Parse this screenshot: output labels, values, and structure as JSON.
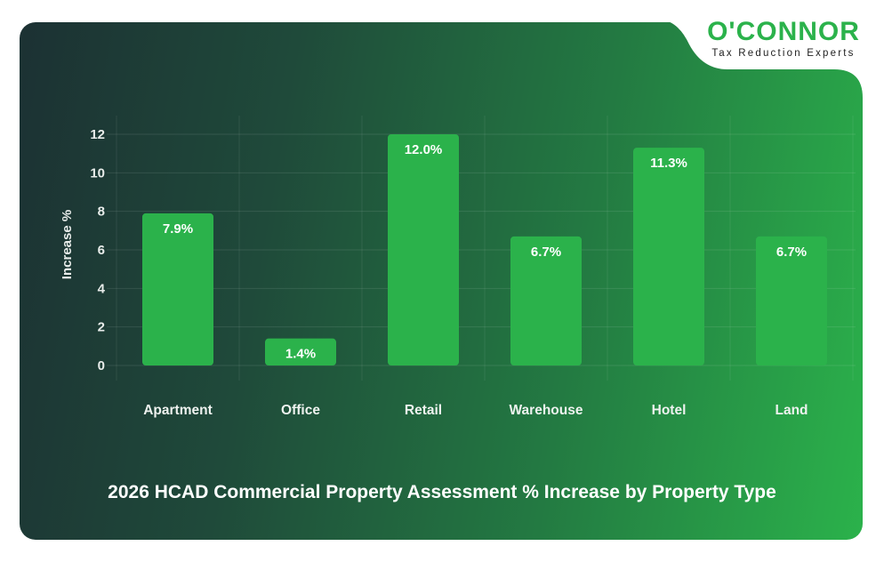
{
  "logo": {
    "name": "O'CONNOR",
    "tagline": "Tax Reduction Experts"
  },
  "colors": {
    "bar": "#2bb24b",
    "brand": "#2bb24b"
  },
  "chart_data": {
    "type": "bar",
    "title": "2026 HCAD Commercial Property Assessment % Increase by Property Type",
    "xlabel": "",
    "ylabel": "Increase %",
    "categories": [
      "Apartment",
      "Office",
      "Retail",
      "Warehouse",
      "Hotel",
      "Land"
    ],
    "values": [
      7.9,
      1.4,
      12.0,
      6.7,
      11.3,
      6.7
    ],
    "data_labels": [
      "7.9%",
      "1.4%",
      "12.0%",
      "6.7%",
      "11.3%",
      "6.7%"
    ],
    "yticks": [
      0,
      2,
      4,
      6,
      8,
      10,
      12
    ],
    "ylim": [
      0,
      12.8
    ],
    "grid": true,
    "legend": "none"
  }
}
